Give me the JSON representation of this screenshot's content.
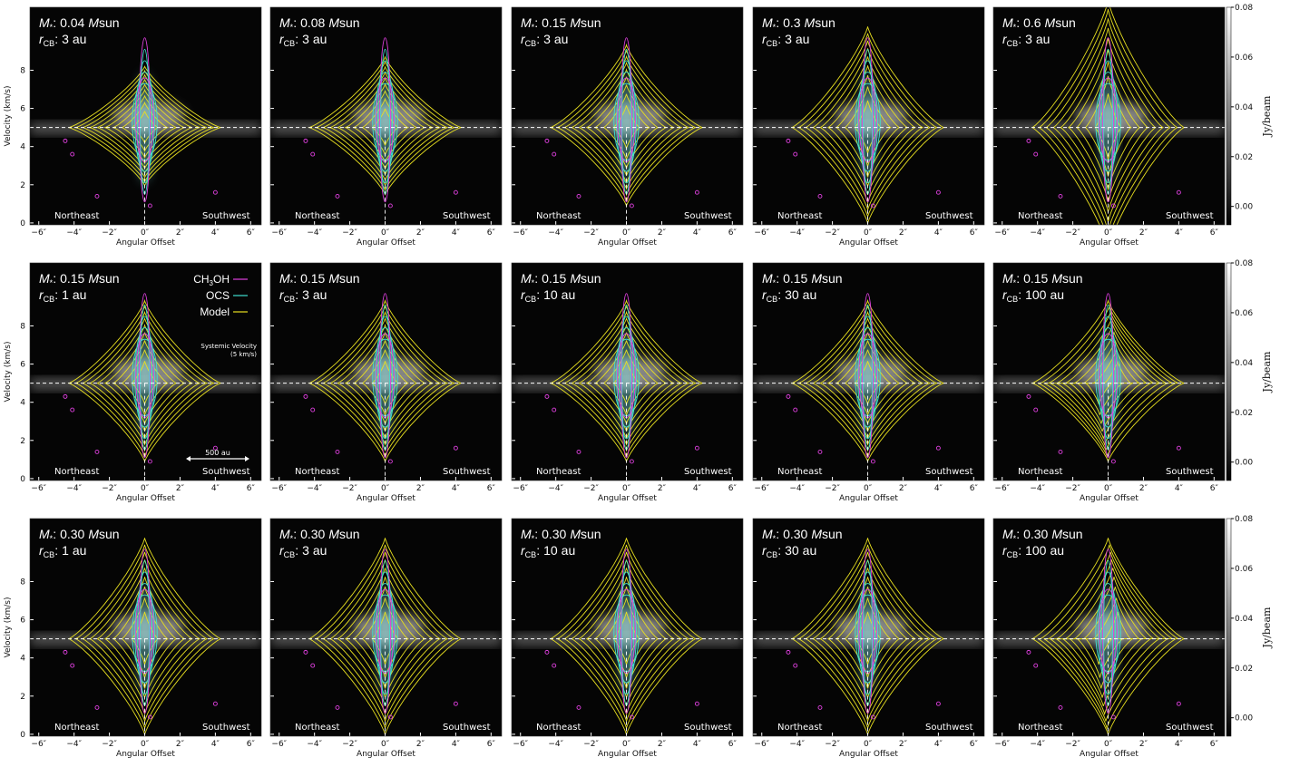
{
  "chart_data": {
    "type": "pv",
    "labels": {
      "m": "M",
      "star": "*",
      "colon": ":",
      "msun_m": "M",
      "sun": "sun",
      "r": "r",
      "cb": "CB",
      "au": "au"
    },
    "panels": [
      {
        "mass": "0.04",
        "rcb": "3"
      },
      {
        "mass": "0.08",
        "rcb": "3"
      },
      {
        "mass": "0.15",
        "rcb": "3"
      },
      {
        "mass": "0.3",
        "rcb": "3"
      },
      {
        "mass": "0.6",
        "rcb": "3"
      },
      {
        "mass": "0.15",
        "rcb": "1"
      },
      {
        "mass": "0.15",
        "rcb": "3"
      },
      {
        "mass": "0.15",
        "rcb": "10"
      },
      {
        "mass": "0.15",
        "rcb": "30"
      },
      {
        "mass": "0.15",
        "rcb": "100"
      },
      {
        "mass": "0.30",
        "rcb": "1"
      },
      {
        "mass": "0.30",
        "rcb": "3"
      },
      {
        "mass": "0.30",
        "rcb": "10"
      },
      {
        "mass": "0.30",
        "rcb": "30"
      },
      {
        "mass": "0.30",
        "rcb": "100"
      }
    ],
    "x_label": "Angular Offset",
    "y_label": "Velocity (km/s)",
    "xlim": [
      -6.5,
      6.6
    ],
    "ylim": [
      -0.1,
      11.3
    ],
    "xticks": [
      {
        "value": -6,
        "label": "−6″"
      },
      {
        "value": -4,
        "label": "−4″"
      },
      {
        "value": -2,
        "label": "−2″"
      },
      {
        "value": 0,
        "label": "0″"
      },
      {
        "value": 2,
        "label": "2″"
      },
      {
        "value": 4,
        "label": "4″"
      },
      {
        "value": 6,
        "label": "6″"
      }
    ],
    "yticks": [
      0,
      2,
      4,
      6,
      8
    ],
    "cbar_label": "Jy/beam",
    "cbar_lim": [
      -0.0074,
      0.08
    ],
    "cbar_ticks": [
      {
        "value": 0,
        "label": "0.00"
      },
      {
        "value": 0.02,
        "label": "0.02"
      },
      {
        "value": 0.04,
        "label": "0.04"
      },
      {
        "value": 0.06,
        "label": "0.06"
      },
      {
        "value": 0.08,
        "label": "0.08"
      }
    ],
    "left_text": "Northeast",
    "right_text": "Southwest",
    "vsys": 5,
    "vsys_label": [
      "Systemic Velocity",
      "(5 km/s)"
    ],
    "scalebar_label": "500 au",
    "legend": [
      {
        "name": "CH",
        "sub": "3",
        "name_end": "OH",
        "color": "#e040e0"
      },
      {
        "name": "OCS",
        "color": "#40e0d0"
      },
      {
        "name": "Model",
        "color": "#e8e020"
      }
    ]
  }
}
